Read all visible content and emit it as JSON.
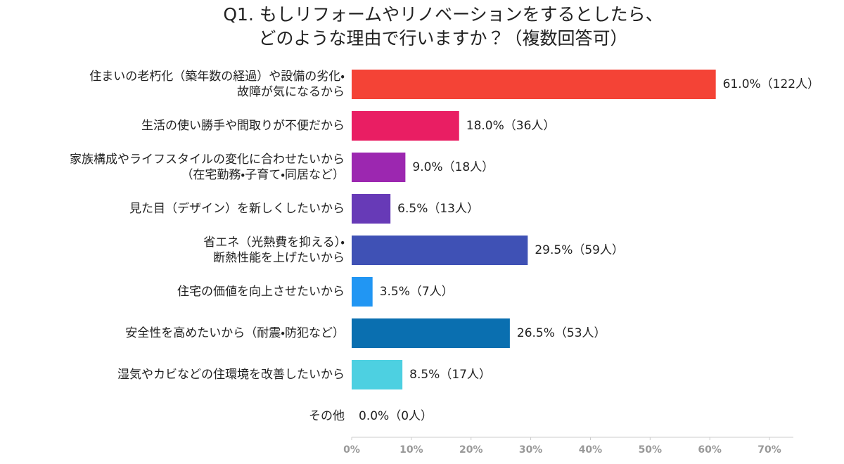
{
  "chart_data": {
    "type": "bar",
    "orientation": "horizontal",
    "title": [
      "Q1. もしリフォームやリノベーションをするとしたら、",
      "どのような理由で行いますか？（複数回答可）"
    ],
    "categories": [
      [
        "住まいの老朽化（築年数の経過）や設備の劣化・",
        "故障が気になるから"
      ],
      [
        "生活の使い勝手や間取りが不便だから"
      ],
      [
        "家族構成やライフスタイルの変化に合わせたいから",
        "（在宅勤務・子育て・同居など）"
      ],
      [
        "見た目（デザイン）を新しくしたいから"
      ],
      [
        "省エネ（光熱費を抑える）・",
        "断熱性能を上げたいから"
      ],
      [
        "住宅の価値を向上させたいから"
      ],
      [
        "安全性を高めたいから（耐震・防犯など）"
      ],
      [
        "湿気やカビなどの住環境を改善したいから"
      ],
      [
        "その他"
      ]
    ],
    "values": [
      61.0,
      18.0,
      9.0,
      6.5,
      29.5,
      3.5,
      26.5,
      8.5,
      0.0
    ],
    "value_labels": [
      "61.0%（122人）",
      "18.0%（36人）",
      "9.0%（18人）",
      "6.5%（13人）",
      "29.5%（59人）",
      "3.5%（7人）",
      "26.5%（53人）",
      "8.5%（17人）",
      "0.0%（0人）"
    ],
    "colors": [
      "#f44336",
      "#e91e63",
      "#9c27b0",
      "#673ab7",
      "#3f51b5",
      "#2196f3",
      "#0a6fb0",
      "#4dd0e1",
      "#9e9e9e"
    ],
    "xlim": [
      0,
      74
    ],
    "xticks": [
      {
        "value": 0,
        "label": "0%"
      },
      {
        "value": 10,
        "label": "10%"
      },
      {
        "value": 20,
        "label": "20%"
      },
      {
        "value": 30,
        "label": "30%"
      },
      {
        "value": 40,
        "label": "40%"
      },
      {
        "value": 50,
        "label": "50%"
      },
      {
        "value": 60,
        "label": "60%"
      },
      {
        "value": 70,
        "label": "70%"
      }
    ],
    "grid": false
  }
}
